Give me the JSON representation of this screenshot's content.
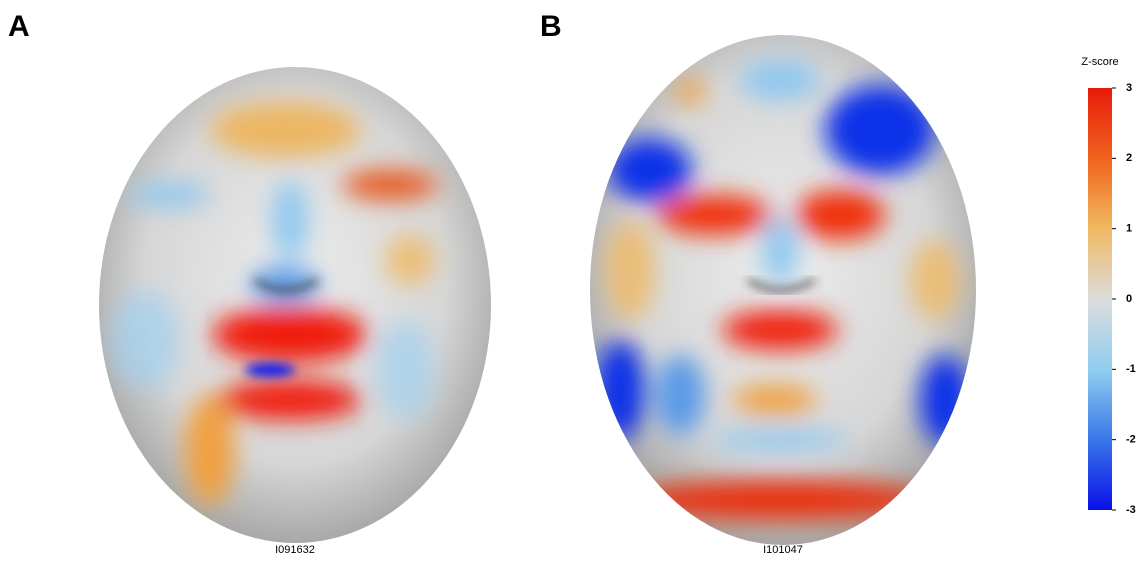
{
  "panels": [
    {
      "label": "A",
      "caption": "I091632"
    },
    {
      "label": "B",
      "caption": "I101047"
    }
  ],
  "colorbar": {
    "title": "Z-score",
    "lim": [
      -3,
      3
    ],
    "ticks": [
      3,
      2,
      1,
      0,
      -1,
      -2,
      -3
    ]
  }
}
